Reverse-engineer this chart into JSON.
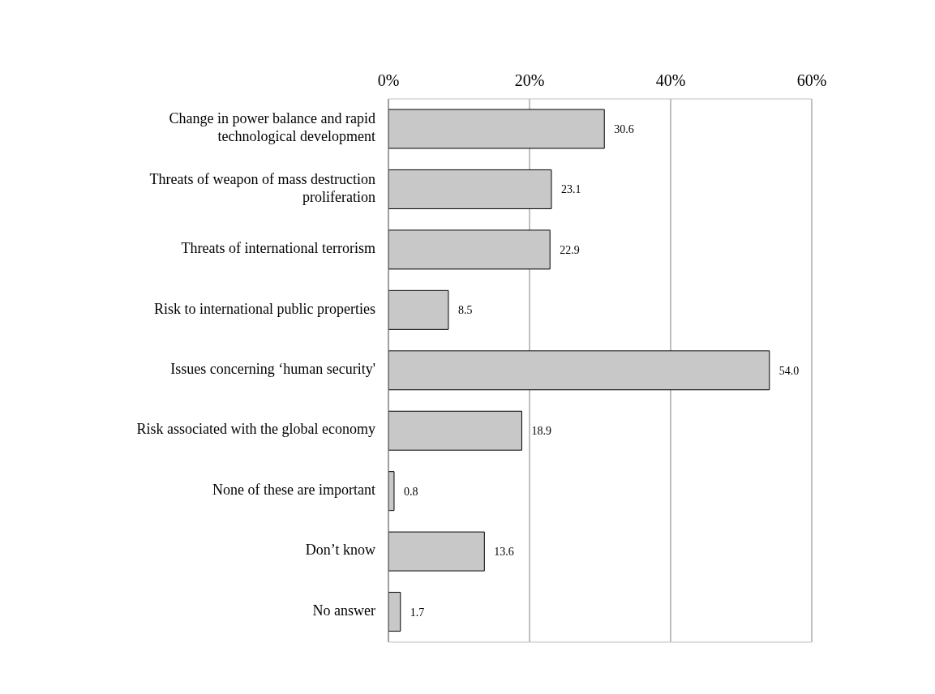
{
  "chart_data": {
    "type": "bar",
    "orientation": "horizontal",
    "categories": [
      "Change in power balance and rapid technological development",
      "Threats of weapon of mass destruction proliferation",
      "Threats of international terrorism",
      "Risk to international public properties",
      "Issues concerning ‘human security'",
      "Risk associated with the global economy",
      "None of these are important",
      "Don’t know",
      "No answer"
    ],
    "values": [
      30.6,
      23.1,
      22.9,
      8.5,
      54.0,
      18.9,
      0.8,
      13.6,
      1.7
    ],
    "value_labels": [
      "30.6",
      "23.1",
      "22.9",
      "8.5",
      "54.0",
      "18.9",
      "0.8",
      "13.6",
      "1.7"
    ],
    "color": "#c8c8c8",
    "xlim": [
      0,
      60
    ],
    "xticks": [
      {
        "value": 0,
        "label": "0%"
      },
      {
        "value": 20,
        "label": "20%"
      },
      {
        "value": 40,
        "label": "40%"
      },
      {
        "value": 60,
        "label": "60%"
      }
    ],
    "grid": "x",
    "legend": false
  }
}
